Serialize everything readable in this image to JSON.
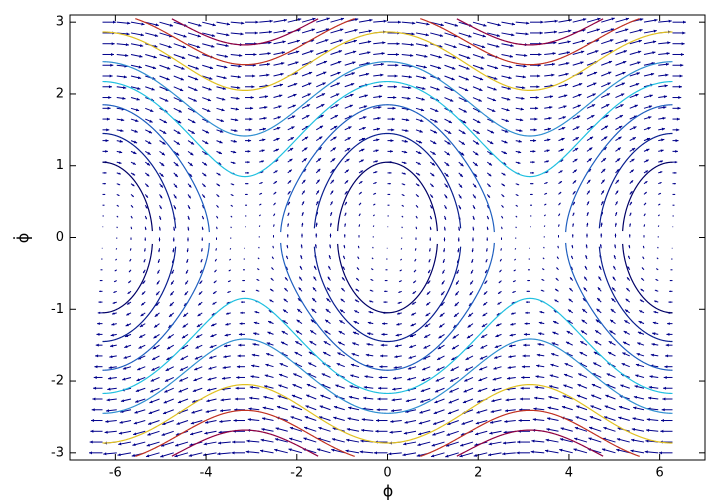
{
  "chart_data": {
    "type": "phase_portrait",
    "xlabel": "ϕ",
    "ylabel": "ϕ̇",
    "xlim": [
      -7,
      7
    ],
    "ylim": [
      -3.1,
      3.1
    ],
    "xticks": [
      -6,
      -4,
      -2,
      0,
      2,
      4,
      6
    ],
    "yticks": [
      -3,
      -2,
      -1,
      0,
      1,
      2,
      3
    ],
    "arrow_color": "#00008b",
    "levels": [
      {
        "value": -0.45,
        "color": "#000066"
      },
      {
        "value": 0.05,
        "color": "#0a1f8f"
      },
      {
        "value": 0.71,
        "color": "#1f5fbf"
      },
      {
        "value": 1.36,
        "color": "#20c0e0"
      },
      {
        "value": 2.0,
        "color": "#2f8fd0"
      },
      {
        "value": 3.1,
        "color": "#e0c020"
      },
      {
        "value": 3.9,
        "color": "#c03020"
      },
      {
        "value": 4.6,
        "color": "#900040"
      }
    ]
  }
}
